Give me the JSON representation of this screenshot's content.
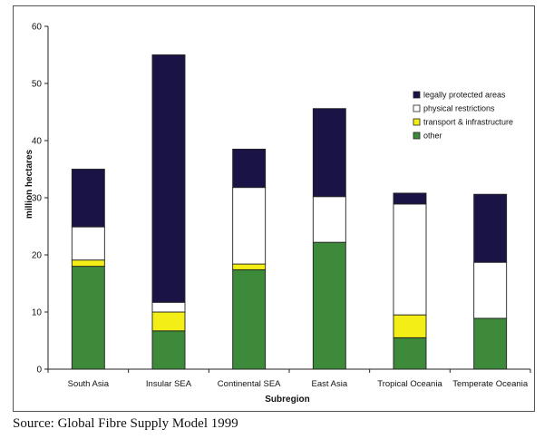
{
  "source_note": "Source: Global Fibre Supply Model 1999",
  "chart_data": {
    "type": "bar",
    "stacked": true,
    "title": "",
    "xlabel": "Subregion",
    "ylabel": "million hectares",
    "ylim": [
      0,
      60
    ],
    "yticks": [
      0,
      10,
      20,
      30,
      40,
      50,
      60
    ],
    "grid": false,
    "legend_position": "top-right",
    "categories": [
      "South Asia",
      "Insular SEA",
      "Continental SEA",
      "East Asia",
      "Tropical Oceania",
      "Temperate Oceania"
    ],
    "series": [
      {
        "name": "other",
        "color": "#3d8a3a",
        "values": [
          18,
          6.7,
          17.4,
          22.2,
          5.5,
          8.9
        ]
      },
      {
        "name": "transport & infrastructure",
        "color": "#f2ee16",
        "values": [
          1.1,
          3.3,
          1.0,
          0,
          4.0,
          0
        ]
      },
      {
        "name": "physical restrictions",
        "color": "#ffffff",
        "values": [
          5.8,
          1.7,
          13.4,
          8.0,
          19.4,
          9.8
        ]
      },
      {
        "name": "legally protected areas",
        "color": "#1a1446",
        "values": [
          10.1,
          43.3,
          6.7,
          15.4,
          1.9,
          11.9
        ]
      }
    ],
    "legend_order": [
      "legally protected areas",
      "physical restrictions",
      "transport & infrastructure",
      "other"
    ]
  }
}
